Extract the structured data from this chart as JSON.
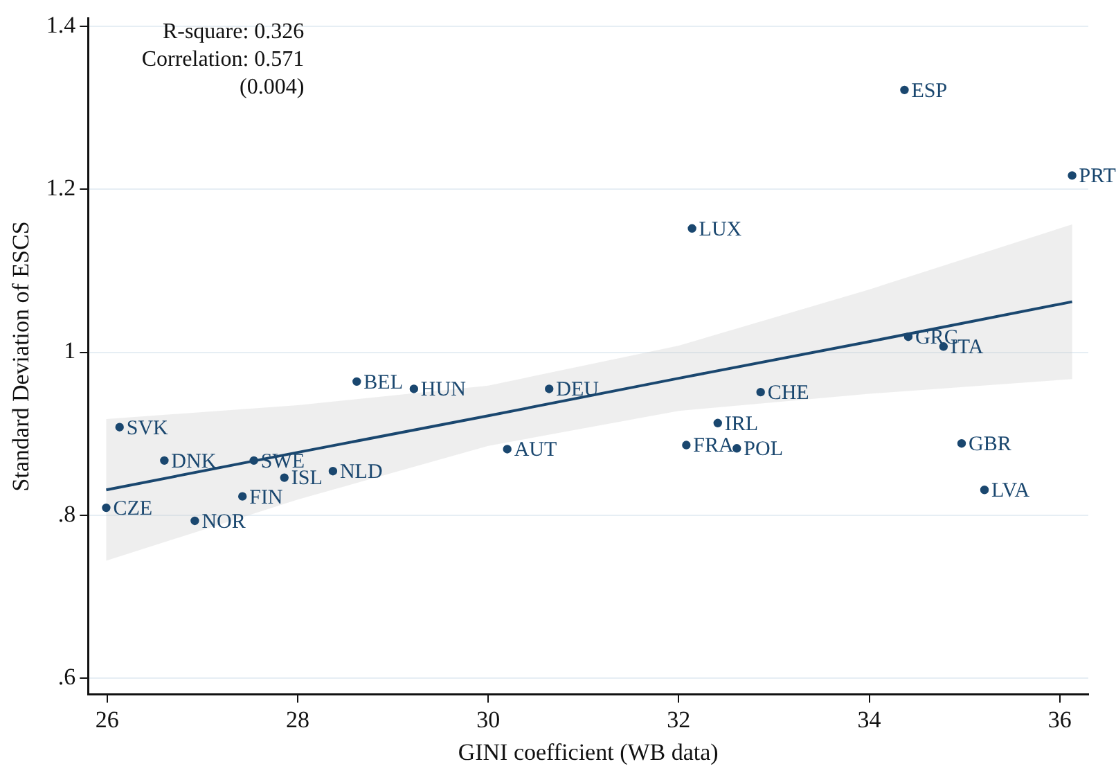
{
  "chart_data": {
    "type": "scatter",
    "xlabel": "GINI coefficient (WB data)",
    "ylabel": "Standard Deviation of ESCS",
    "xlim": [
      25.8,
      36.3
    ],
    "ylim": [
      0.58,
      1.41
    ],
    "xticks": [
      26,
      28,
      30,
      32,
      34,
      36
    ],
    "yticks": [
      {
        "value": 0.6,
        "label": ".6"
      },
      {
        "value": 0.8,
        "label": ".8"
      },
      1,
      1.2,
      1.4
    ],
    "grid": "y",
    "legend": false,
    "series": [
      {
        "marker": "circle",
        "color": "#1a476f",
        "x": [
          34.37,
          36.13,
          32.14,
          34.41,
          34.78,
          32.86,
          32.41,
          32.08,
          32.61,
          34.97,
          35.21,
          28.62,
          29.22,
          30.64,
          26.13,
          26.6,
          27.54,
          27.86,
          28.37,
          30.2,
          27.42,
          25.99,
          26.92
        ],
        "values": [
          1.322,
          1.217,
          1.152,
          1.019,
          1.007,
          0.951,
          0.913,
          0.886,
          0.882,
          0.888,
          0.831,
          0.964,
          0.955,
          0.955,
          0.908,
          0.867,
          0.867,
          0.846,
          0.854,
          0.881,
          0.823,
          0.809,
          0.793
        ]
      },
      {
        "type": "line",
        "marker": "none",
        "color": "#1a476f",
        "x": [
          25.99,
          28,
          30,
          32,
          34,
          36.13
        ],
        "values": [
          0.831,
          0.877,
          0.922,
          0.968,
          1.013,
          1.062
        ],
        "lower": [
          0.744,
          0.819,
          0.885,
          0.928,
          0.949,
          0.967
        ],
        "upper": [
          0.918,
          0.935,
          0.959,
          1.008,
          1.077,
          1.157
        ]
      }
    ],
    "annotations": [
      "R-square: 0.326",
      "Correlation: 0.571",
      "(0.004)",
      {
        "text": "ESP",
        "x": 34.37,
        "y": 1.322
      },
      {
        "text": "PRT",
        "x": 36.13,
        "y": 1.217
      },
      {
        "text": "LUX",
        "x": 32.14,
        "y": 1.152
      },
      {
        "text": "GRC",
        "x": 34.41,
        "y": 1.019
      },
      {
        "text": "ITA",
        "x": 34.78,
        "y": 1.007
      },
      {
        "text": "CHE",
        "x": 32.86,
        "y": 0.951
      },
      {
        "text": "IRL",
        "x": 32.41,
        "y": 0.913
      },
      {
        "text": "FRA",
        "x": 32.08,
        "y": 0.886
      },
      {
        "text": "POL",
        "x": 32.61,
        "y": 0.882
      },
      {
        "text": "GBR",
        "x": 34.97,
        "y": 0.888
      },
      {
        "text": "LVA",
        "x": 35.21,
        "y": 0.831
      },
      {
        "text": "BEL",
        "x": 28.62,
        "y": 0.964
      },
      {
        "text": "HUN",
        "x": 29.22,
        "y": 0.955
      },
      {
        "text": "DEU",
        "x": 30.64,
        "y": 0.955
      },
      {
        "text": "SVK",
        "x": 26.13,
        "y": 0.908
      },
      {
        "text": "DNK",
        "x": 26.6,
        "y": 0.867
      },
      {
        "text": "SWE",
        "x": 27.54,
        "y": 0.867
      },
      {
        "text": "ISL",
        "x": 27.86,
        "y": 0.846
      },
      {
        "text": "NLD",
        "x": 28.37,
        "y": 0.854
      },
      {
        "text": "AUT",
        "x": 30.2,
        "y": 0.881
      },
      {
        "text": "FIN",
        "x": 27.42,
        "y": 0.823
      },
      {
        "text": "CZE",
        "x": 25.99,
        "y": 0.809
      },
      {
        "text": "NOR",
        "x": 26.92,
        "y": 0.793
      }
    ]
  }
}
